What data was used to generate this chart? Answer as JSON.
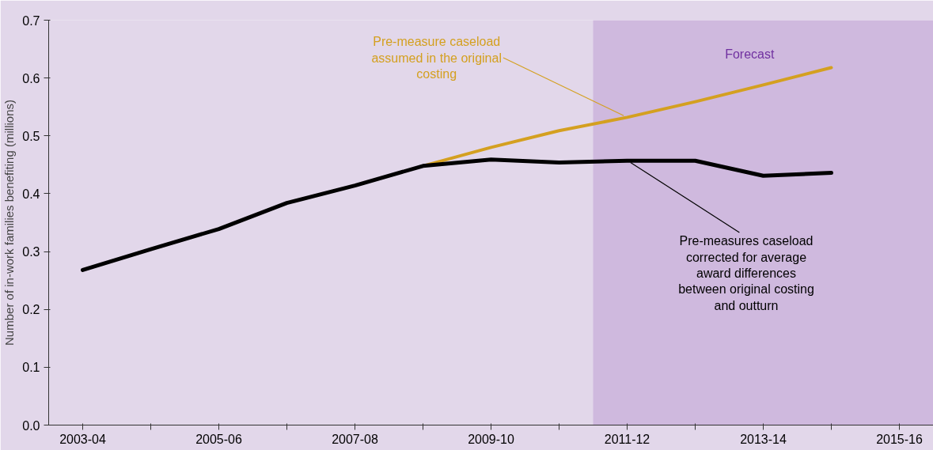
{
  "chart_data": {
    "type": "line",
    "ylabel": "Number of in-work families benefiting (millions)",
    "categories": [
      "2003-04",
      null,
      "2005-06",
      null,
      "2007-08",
      null,
      "2009-10",
      null,
      "2011-12",
      null,
      "2013-14",
      null,
      "2015-16"
    ],
    "series": [
      {
        "color": "#d4a020",
        "values": [
          null,
          null,
          null,
          null,
          null,
          0.448,
          0.48,
          0.509,
          0.532,
          0.559,
          0.588,
          0.618,
          null
        ]
      },
      {
        "color": "#000000",
        "values": [
          0.268,
          0.304,
          0.339,
          0.384,
          0.414,
          0.448,
          0.459,
          0.454,
          0.457,
          0.457,
          0.431,
          0.436,
          null
        ]
      }
    ],
    "bands": [
      {
        "axis": "x",
        "from": "2011-12",
        "to": "2015-16",
        "label": "Forecast",
        "color": "#cfb9de"
      }
    ],
    "ylim": [
      0,
      0.7
    ],
    "yticks": [
      {
        "value": 0,
        "label": "0.0"
      },
      0.1,
      0.2,
      0.3,
      0.4,
      0.5,
      0.6,
      0.7
    ],
    "annotations": [
      {
        "text": "Pre-measure caseload\nassumed in the original\ncosting",
        "x": "2011-12",
        "y": 0.532
      },
      {
        "text": "Pre-measures caseload\ncorrected for average\naward differences\nbetween original costing\nand outturn",
        "x": "2011-12",
        "y": 0.457
      }
    ],
    "grid": false
  }
}
